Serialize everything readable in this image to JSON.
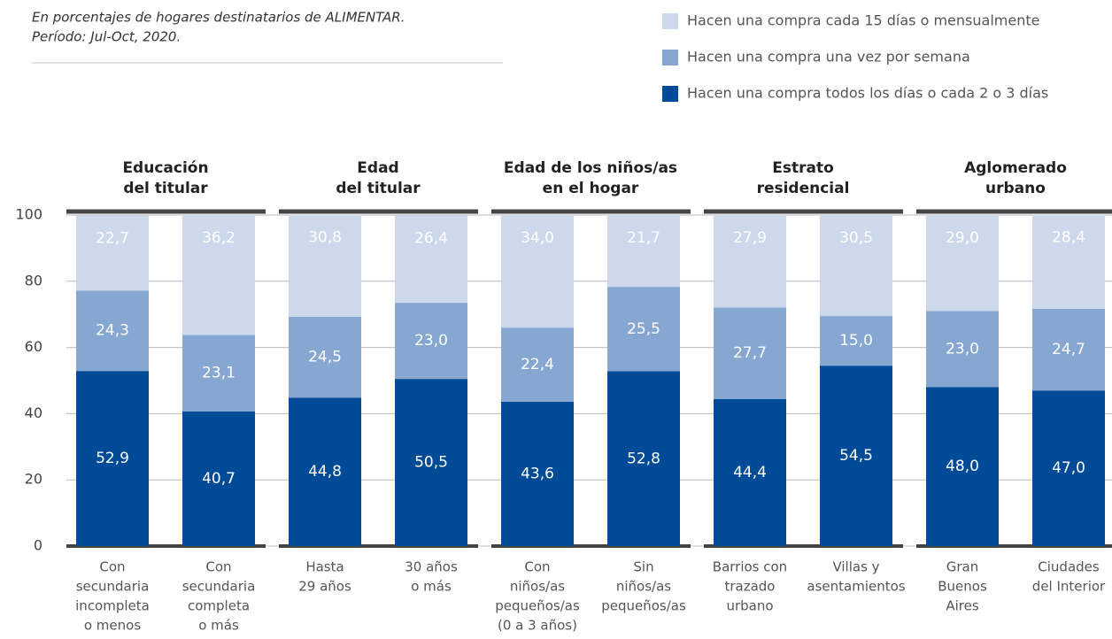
{
  "chart_data": {
    "type": "stacked_bar",
    "subtitle": [
      "En porcentajes de hogares destinatarios de ALIMENTAR.",
      "Período: Jul-Oct, 2020."
    ],
    "groups": [
      [
        "Educación",
        "del titular"
      ],
      [
        "Edad",
        "del titular"
      ],
      [
        "Edad de los niños/as",
        "en el hogar"
      ],
      [
        "Estrato",
        "residencial"
      ],
      [
        "Aglomerado",
        "urbano"
      ]
    ],
    "categories": [
      [
        "Con",
        "secundaria",
        "incompleta",
        "o menos"
      ],
      [
        "Con",
        "secundaria",
        "completa",
        "o más"
      ],
      [
        "Hasta",
        "29 años"
      ],
      [
        "30 años",
        "o más"
      ],
      [
        "Con",
        "niños/as",
        "pequeños/as",
        "(0 a 3 años)"
      ],
      [
        "Sin",
        "niños/as",
        "pequeños/as"
      ],
      [
        "Barrios con",
        "trazado",
        "urbano"
      ],
      [
        "Villas y",
        "asentamientos"
      ],
      [
        "Gran",
        "Buenos",
        "Aires"
      ],
      [
        "Ciudades",
        "del Interior"
      ]
    ],
    "series": [
      {
        "name": "Hacen una compra todos los días o cada 2 o 3 días",
        "color": "#004b98",
        "values": [
          52.9,
          40.7,
          44.8,
          50.5,
          43.6,
          52.8,
          44.4,
          54.5,
          48.0,
          47.0
        ],
        "value_labels": [
          "52,9",
          "40,7",
          "44,8",
          "50,5",
          "43,6",
          "52,8",
          "44,4",
          "54,5",
          "48,0",
          "47,0"
        ]
      },
      {
        "name": "Hacen una compra una vez por semana",
        "color": "#87a7d3",
        "values": [
          24.3,
          23.1,
          24.5,
          23.0,
          22.4,
          25.5,
          27.7,
          15.0,
          23.0,
          24.7
        ],
        "value_labels": [
          "24,3",
          "23,1",
          "24,5",
          "23,0",
          "22,4",
          "25,5",
          "27,7",
          "15,0",
          "23,0",
          "24,7"
        ]
      },
      {
        "name": "Hacen una compra cada 15 días o mensualmente",
        "color": "#cdd8eb",
        "values": [
          22.7,
          36.2,
          30.8,
          26.4,
          34.0,
          21.7,
          27.9,
          30.5,
          29.0,
          28.4
        ],
        "value_labels": [
          "22,7",
          "36,2",
          "30,8",
          "26,4",
          "34,0",
          "21,7",
          "27,9",
          "30,5",
          "29,0",
          "28,4"
        ]
      }
    ],
    "ylim": [
      0,
      100
    ],
    "yticks": [
      0,
      20,
      40,
      60,
      80,
      100
    ],
    "grid": true
  }
}
